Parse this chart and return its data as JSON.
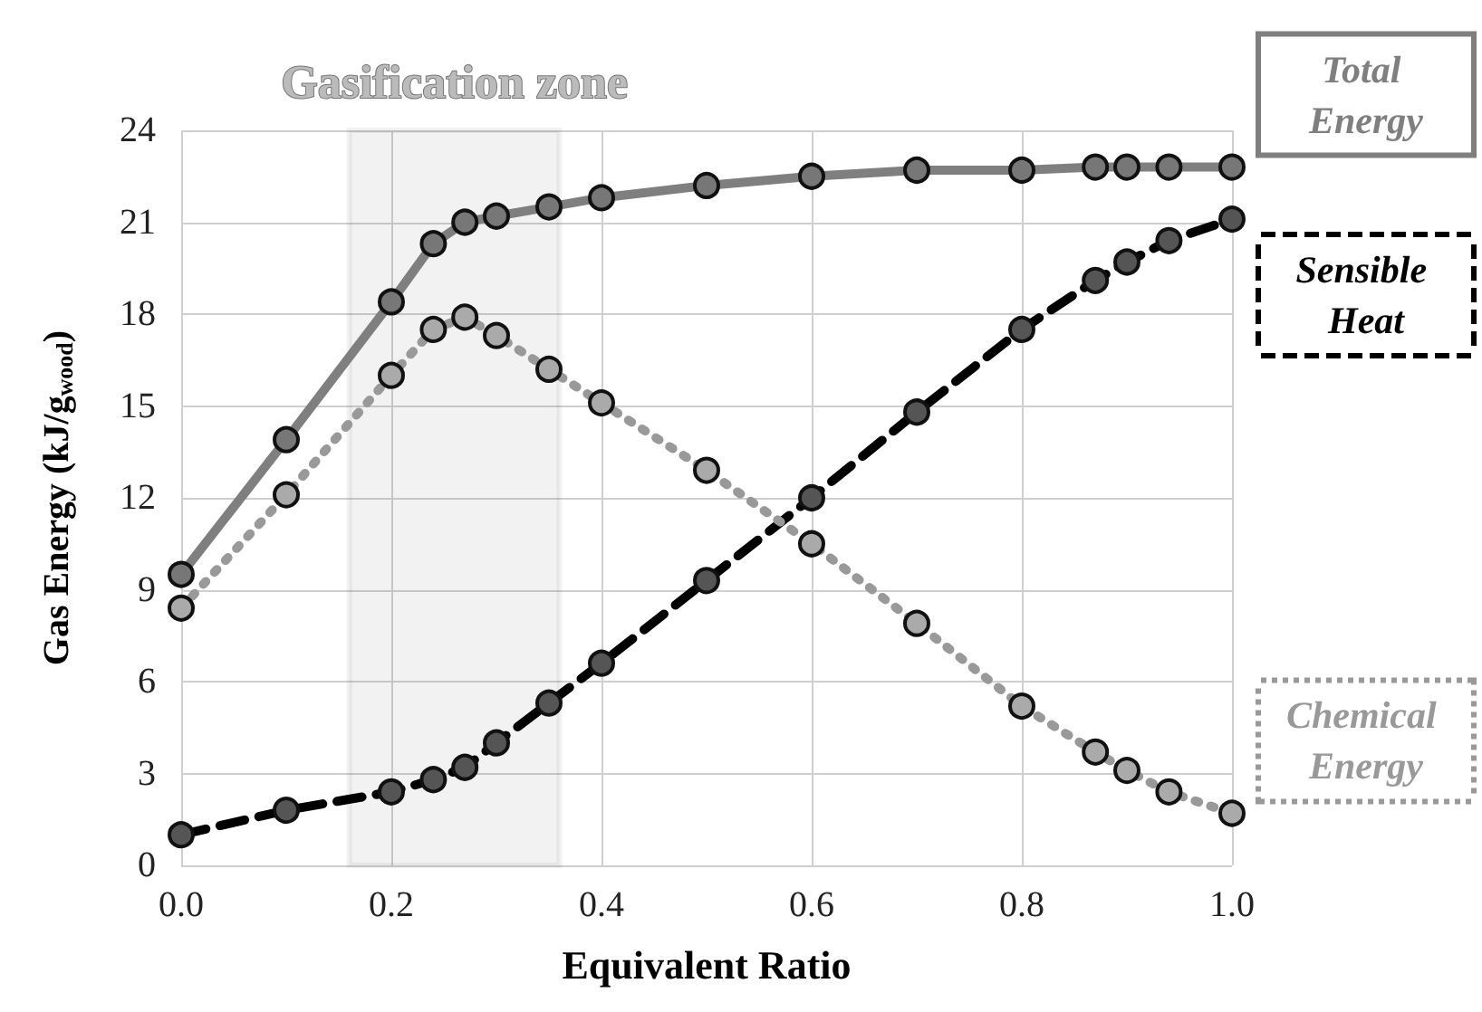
{
  "chart_data": {
    "type": "line",
    "xlabel": "Equivalent Ratio",
    "ylabel": "Gas Energy (kJ/g$_{wood}$)",
    "x": [
      0,
      0.1,
      0.2,
      0.24,
      0.27,
      0.3,
      0.35,
      0.4,
      0.5,
      0.6,
      0.7,
      0.8,
      0.87,
      0.9,
      0.94,
      1.0
    ],
    "series": [
      {
        "name": "Total Energy",
        "color": "#7f7f7f",
        "line_style": "solid",
        "values": [
          9.5,
          13.9,
          18.4,
          20.3,
          21.0,
          21.2,
          21.5,
          21.8,
          22.2,
          22.5,
          22.7,
          22.7,
          22.8,
          22.8,
          22.8,
          22.8
        ]
      },
      {
        "name": "Sensible Heat",
        "color": "#000000",
        "line_style": "dashed",
        "values": [
          1.0,
          1.8,
          2.4,
          2.8,
          3.2,
          4.0,
          5.3,
          6.6,
          9.3,
          12.0,
          14.8,
          17.5,
          19.1,
          19.7,
          20.4,
          21.1
        ]
      },
      {
        "name": "Chemical Energy",
        "color": "#999999",
        "line_style": "dotted",
        "values": [
          8.4,
          12.1,
          16.0,
          17.5,
          17.9,
          17.3,
          16.2,
          15.1,
          12.9,
          10.5,
          7.9,
          5.2,
          3.7,
          3.1,
          2.4,
          1.7
        ]
      }
    ],
    "xlim": [
      0,
      1
    ],
    "xticks": [
      {
        "value": 0,
        "label": "0.0"
      },
      {
        "value": 0.2,
        "label": "0.2"
      },
      {
        "value": 0.4,
        "label": "0.4"
      },
      {
        "value": 0.6,
        "label": "0.6"
      },
      {
        "value": 0.8,
        "label": "0.8"
      },
      {
        "value": 1,
        "label": "1.0"
      }
    ],
    "ylim": [
      0,
      24
    ],
    "yticks": [
      0,
      3,
      6,
      9,
      12,
      15,
      18,
      21,
      24
    ],
    "bands": [
      {
        "axis": "x",
        "from": 0.16,
        "to": 0.36,
        "label": "Gasification zone",
        "color": "#555555"
      }
    ],
    "grid": true,
    "legend": false,
    "marker": "circle"
  }
}
